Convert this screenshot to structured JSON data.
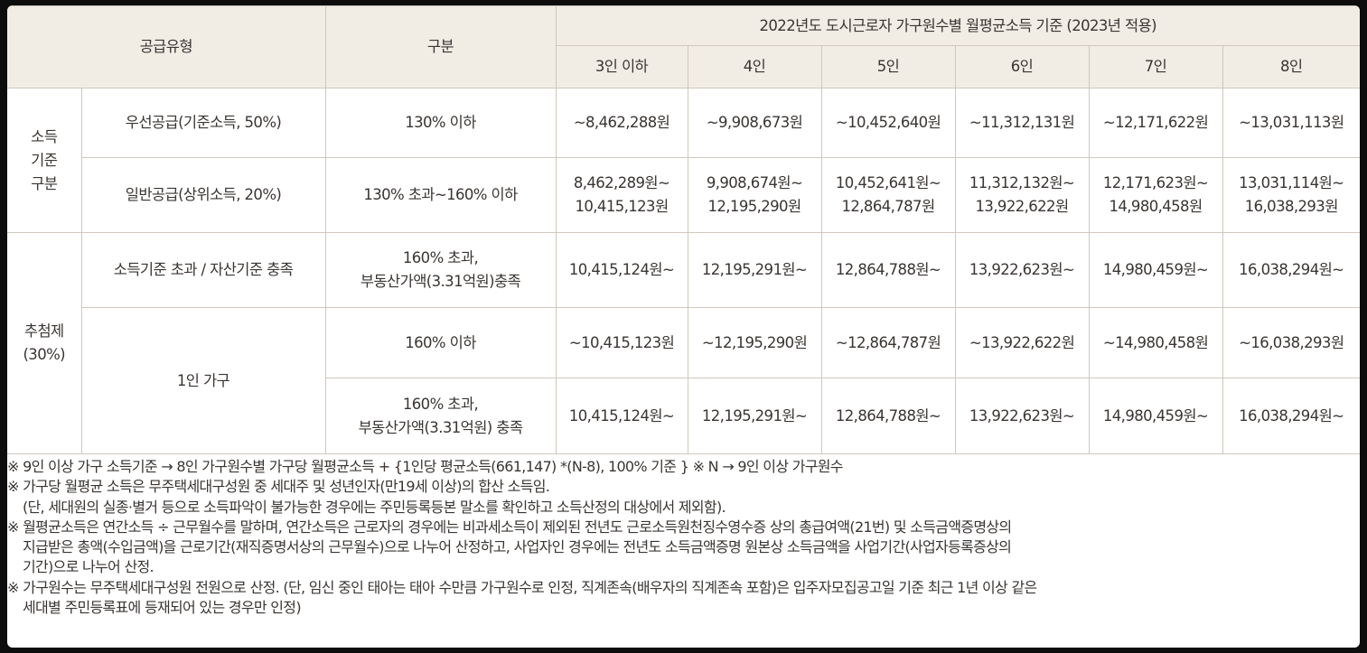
{
  "header": {
    "supply_type": "공급유형",
    "category": "구분",
    "income_basis": "2022년도 도시근로자 가구원수별 월평균소득 기준 (2023년 적용)",
    "household_sizes": [
      "3인 이하",
      "4인",
      "5인",
      "6인",
      "7인",
      "8인"
    ]
  },
  "groups": {
    "income_group": "소득\n기준\n구분",
    "lottery_group": "추첨제\n(30%)"
  },
  "rows": [
    {
      "type": "우선공급(기준소득, 50%)",
      "criteria": "130% 이하",
      "values": [
        "~8,462,288원",
        "~9,908,673원",
        "~10,452,640원",
        "~11,312,131원",
        "~12,171,622원",
        "~13,031,113원"
      ]
    },
    {
      "type": "일반공급(상위소득, 20%)",
      "criteria": "130% 초과~160% 이하",
      "values": [
        "8,462,289원~\n10,415,123원",
        "9,908,674원~\n12,195,290원",
        "10,452,641원~\n12,864,787원",
        "11,312,132원~\n13,922,622원",
        "12,171,623원~\n14,980,458원",
        "13,031,114원~\n16,038,293원"
      ]
    },
    {
      "type": "소득기준 초과 / 자산기준 충족",
      "criteria": "160% 초과,\n부동산가액(3.31억원)충족",
      "values": [
        "10,415,124원~",
        "12,195,291원~",
        "12,864,788원~",
        "13,922,623원~",
        "14,980,459원~",
        "16,038,294원~"
      ]
    },
    {
      "type": "1인 가구",
      "criteria": "160% 이하",
      "values": [
        "~10,415,123원",
        "~12,195,290원",
        "~12,864,787원",
        "~13,922,622원",
        "~14,980,458원",
        "~16,038,293원"
      ]
    },
    {
      "type": "",
      "criteria": "160% 초과,\n부동산가액(3.31억원) 충족",
      "values": [
        "10,415,124원~",
        "12,195,291원~",
        "12,864,788원~",
        "13,922,623원~",
        "14,980,459원~",
        "16,038,294원~"
      ]
    }
  ],
  "notes": [
    "※ 9인 이상 가구 소득기준 → 8인 가구원수별 가구당 월평균소득 + {1인당 평균소득(661,147) *(N-8), 100% 기준 }     ※ N → 9인 이상 가구원수",
    "※ 가구당 월평균 소득은 무주택세대구성원 중 세대주 및 성년인자(만19세 이상)의 합산 소득임.",
    "(단, 세대원의 실종·별거 등으로 소득파악이 불가능한 경우에는 주민등록등본 말소를 확인하고 소득산정의 대상에서 제외함).",
    "※ 월평균소득은 연간소득 ÷ 근무월수를 말하며, 연간소득은 근로자의 경우에는 비과세소득이 제외된 전년도 근로소득원천징수영수증 상의 총급여액(21번) 및 소득금액증명상의",
    "지급받은 총액(수입금액)을 근로기간(재직증명서상의 근무월수)으로 나누어 산정하고, 사업자인 경우에는 전년도 소득금액증명 원본상 소득금액을 사업기간(사업자등록증상의",
    "기간)으로 나누어 산정.",
    "※ 가구원수는 무주택세대구성원 전원으로 산정. (단, 임신 중인 태아는 태아 수만큼 가구원수로 인정, 직계존속(배우자의 직계존속 포함)은 입주자모집공고일 기준 최근 1년 이상 같은",
    "세대별 주민등록표에 등재되어 있는 경우만 인정)"
  ]
}
